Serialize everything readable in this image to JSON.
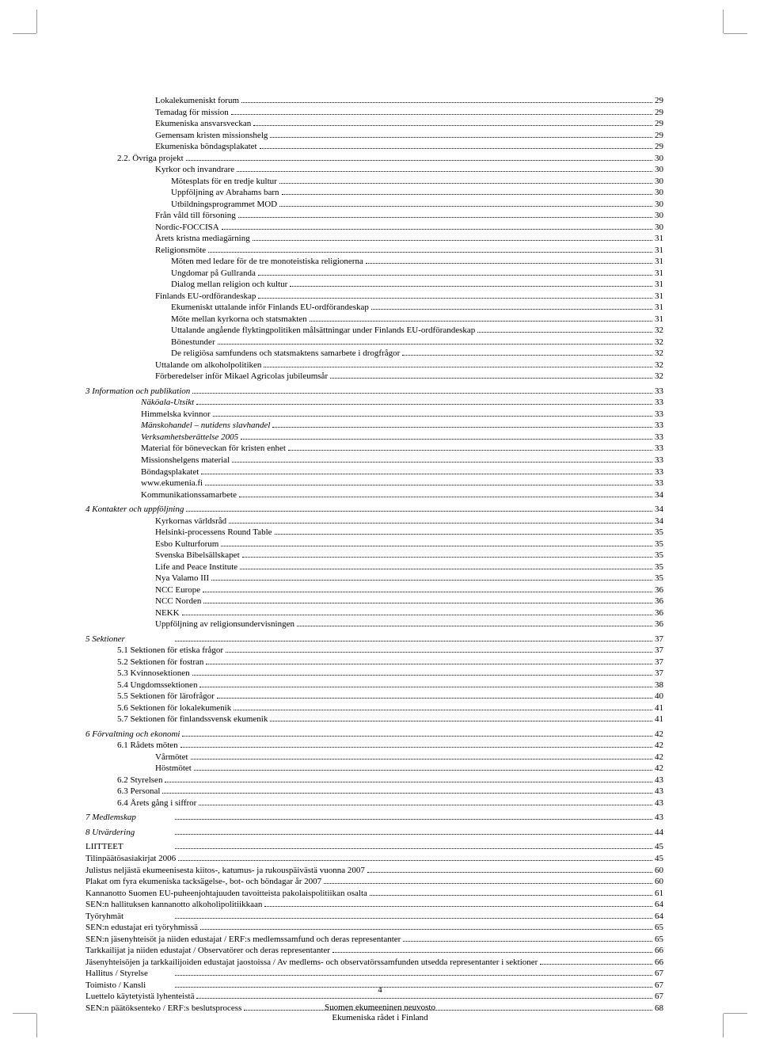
{
  "toc": [
    {
      "indent": "i3",
      "label": "Lokalekumeniskt forum",
      "page": "29"
    },
    {
      "indent": "i3",
      "label": "Temadag för mission",
      "page": "29"
    },
    {
      "indent": "i3",
      "label": "Ekumeniska ansvarsveckan",
      "page": "29"
    },
    {
      "indent": "i3",
      "label": "Gemensam kristen missionshelg",
      "page": "29"
    },
    {
      "indent": "i3",
      "label": "Ekumeniska böndagsplakatet",
      "page": "29"
    },
    {
      "indent": "i1",
      "label": "2.2. Övriga projekt",
      "page": "30"
    },
    {
      "indent": "i3",
      "label": "Kyrkor och invandrare",
      "page": "30"
    },
    {
      "indent": "i4",
      "label": "Mötesplats för en tredje kultur",
      "page": "30"
    },
    {
      "indent": "i4",
      "label": "Uppföljning av Abrahams barn",
      "page": "30"
    },
    {
      "indent": "i4",
      "label": "Utbildningsprogrammet MOD",
      "page": "30"
    },
    {
      "indent": "i3",
      "label": "Från våld till försoning",
      "page": "30"
    },
    {
      "indent": "i3",
      "label": "Nordic-FOCCISA",
      "page": "30"
    },
    {
      "indent": "i3",
      "label": "Årets kristna mediagärning",
      "page": "31"
    },
    {
      "indent": "i3",
      "label": "Religionsmöte",
      "page": "31"
    },
    {
      "indent": "i4",
      "label": "Möten med ledare för de tre monoteistiska religionerna",
      "page": "31"
    },
    {
      "indent": "i4",
      "label": "Ungdomar på Gullranda",
      "page": "31"
    },
    {
      "indent": "i4",
      "label": "Dialog mellan religion och kultur",
      "page": "31"
    },
    {
      "indent": "i3",
      "label": "Finlands EU-ordförandeskap",
      "page": "31"
    },
    {
      "indent": "i4",
      "label": "Ekumeniskt uttalande inför Finlands EU-ordförandeskap",
      "page": "31"
    },
    {
      "indent": "i4",
      "label": "Möte mellan kyrkorna och statsmakten",
      "page": "31"
    },
    {
      "indent": "i4",
      "label": "Uttalande angående flyktingpolitiken målsättningar under Finlands EU-ordförandeskap",
      "page": "32"
    },
    {
      "indent": "i4",
      "label": "Bönestunder",
      "page": "32"
    },
    {
      "indent": "i4",
      "label": "De religiösa samfundens och statsmaktens samarbete i drogfrågor",
      "page": "32"
    },
    {
      "indent": "i3",
      "label": "Uttalande om alkoholpolitiken",
      "page": "32"
    },
    {
      "indent": "i3",
      "label": "Förberedelser inför Mikael Agricolas jubileumsår",
      "page": "32"
    },
    {
      "spacer": "sm"
    },
    {
      "indent": "i0",
      "label": "3 Information och publikation",
      "page": "33",
      "ital": true
    },
    {
      "indent": "i2",
      "label": "Näköala-Utsikt",
      "page": "33",
      "ital": true
    },
    {
      "indent": "i2",
      "label": "Himmelska kvinnor",
      "page": "33"
    },
    {
      "indent": "i2",
      "label": "Mänskohandel – nutidens slavhandel",
      "page": "33",
      "ital": true
    },
    {
      "indent": "i2",
      "label": "Verksamhetsberättelse 2005",
      "page": "33",
      "ital": true
    },
    {
      "indent": "i2",
      "label": "Material för böneveckan för kristen enhet",
      "page": "33"
    },
    {
      "indent": "i2",
      "label": "Missionshelgens material",
      "page": "33"
    },
    {
      "indent": "i2",
      "label": "Böndagsplakatet",
      "page": "33"
    },
    {
      "indent": "i2",
      "label": "www.ekumenia.fi",
      "page": "33"
    },
    {
      "indent": "i2",
      "label": "Kommunikationssamarbete",
      "page": "34"
    },
    {
      "spacer": "sm"
    },
    {
      "indent": "i0",
      "label": "4 Kontakter och uppföljning",
      "page": "34",
      "ital": true
    },
    {
      "indent": "i3",
      "label": "Kyrkornas världsråd",
      "page": "34"
    },
    {
      "indent": "i3",
      "label": "Helsinki-processens Round Table",
      "page": "35"
    },
    {
      "indent": "i3",
      "label": "Esbo Kulturforum",
      "page": "35"
    },
    {
      "indent": "i3",
      "label": "Svenska Bibelsällskapet",
      "page": "35"
    },
    {
      "indent": "i3",
      "label": "Life and Peace Institute",
      "page": "35"
    },
    {
      "indent": "i3",
      "label": "Nya Valamo III",
      "page": "35"
    },
    {
      "indent": "i3",
      "label": "NCC Europe",
      "page": "36"
    },
    {
      "indent": "i3",
      "label": "NCC Norden",
      "page": "36"
    },
    {
      "indent": "i3",
      "label": "NEKK",
      "page": "36"
    },
    {
      "indent": "i3",
      "label": "Uppföljning av religionsundervisningen",
      "page": "36"
    },
    {
      "spacer": "sm"
    },
    {
      "indent": "i0",
      "label": "5 Sektioner",
      "page": "37",
      "ital": true,
      "fixed": true
    },
    {
      "indent": "i1",
      "label": "5.1  Sektionen för etiska frågor",
      "page": "37"
    },
    {
      "indent": "i1",
      "label": "5.2  Sektionen för fostran",
      "page": "37"
    },
    {
      "indent": "i1",
      "label": "5.3  Kvinnosektionen",
      "page": "37"
    },
    {
      "indent": "i1",
      "label": "5.4  Ungdomssektionen",
      "page": "38"
    },
    {
      "indent": "i1",
      "label": "5.5  Sektionen för lärofrågor",
      "page": "40"
    },
    {
      "indent": "i1",
      "label": "5.6  Sektionen för lokalekumenik",
      "page": "41"
    },
    {
      "indent": "i1",
      "label": "5.7  Sektionen för finlandssvensk ekumenik",
      "page": "41"
    },
    {
      "spacer": "sm"
    },
    {
      "indent": "i0",
      "label": "6 Förvaltning och ekonomi",
      "page": "42",
      "ital": true
    },
    {
      "indent": "i1",
      "label": "6.1  Rådets möten",
      "page": "42"
    },
    {
      "indent": "i3",
      "label": "Vårmötet",
      "page": "42"
    },
    {
      "indent": "i3",
      "label": "Höstmötet",
      "page": "42"
    },
    {
      "indent": "i1",
      "label": "6.2  Styrelsen",
      "page": "43"
    },
    {
      "indent": "i1",
      "label": "6.3  Personal",
      "page": "43"
    },
    {
      "indent": "i1",
      "label": "6.4  Årets gång i siffror",
      "page": "43"
    },
    {
      "spacer": "sm"
    },
    {
      "indent": "i0",
      "label": "7 Medlemskap",
      "page": "43",
      "ital": true,
      "fixed": true
    },
    {
      "spacer": "sm"
    },
    {
      "indent": "i0",
      "label": "8 Utvärdering",
      "page": "44",
      "ital": true,
      "fixed": true
    },
    {
      "spacer": "sm"
    },
    {
      "indent": "i0",
      "label": "LIITTEET",
      "page": "45",
      "fixed": true
    },
    {
      "indent": "i0",
      "label": "Tilinpäätösasiakirjat 2006",
      "page": "45"
    },
    {
      "indent": "i0",
      "label": "Julistus neljästä ekumeenisesta kiitos-, katumus- ja rukouspäivästä vuonna 2007",
      "page": "60"
    },
    {
      "indent": "i0",
      "label": "Plakat om fyra ekumeniska tacksägelse-, bot- och böndagar år 2007",
      "page": "60"
    },
    {
      "indent": "i0",
      "label": "Kannanotto Suomen EU-puheenjohtajuuden tavoitteista pakolaispolitiikan osalta",
      "page": "61"
    },
    {
      "indent": "i0",
      "label": "SEN:n hallituksen kannanotto alkoholipolitiikkaan",
      "page": "64"
    },
    {
      "indent": "i0",
      "label": "Työryhmät",
      "page": "64",
      "fixed": true
    },
    {
      "indent": "i0",
      "label": "SEN:n edustajat eri työryhmissä",
      "page": "65"
    },
    {
      "indent": "i0",
      "label": "SEN:n jäsenyhteisöt ja niiden edustajat / ERF:s medlemssamfund och deras representanter",
      "page": "65"
    },
    {
      "indent": "i0",
      "label": "Tarkkailijat ja niiden edustajat / Observatörer och deras representanter",
      "page": "66"
    },
    {
      "indent": "i0",
      "label": "Jäsenyhteisöjen ja tarkkailijoiden edustajat jaostoissa / Av medlems- och observatörssamfunden utsedda representanter i sektioner",
      "page": "66"
    },
    {
      "indent": "i0",
      "label": "Hallitus / Styrelse",
      "page": "67",
      "fixed": true
    },
    {
      "indent": "i0",
      "label": "Toimisto / Kansli",
      "page": "67",
      "fixed": true
    },
    {
      "indent": "i0",
      "label": "Luettelo käytetyistä lyhenteistä",
      "page": "67"
    },
    {
      "indent": "i0",
      "label": "SEN:n päätöksenteko / ERF:s beslutsprocess",
      "page": "68"
    }
  ],
  "footer": {
    "pageNumber": "4",
    "line1": "Suomen ekumeeninen neuvosto",
    "line2": "Ekumeniska rådet i Finland"
  }
}
